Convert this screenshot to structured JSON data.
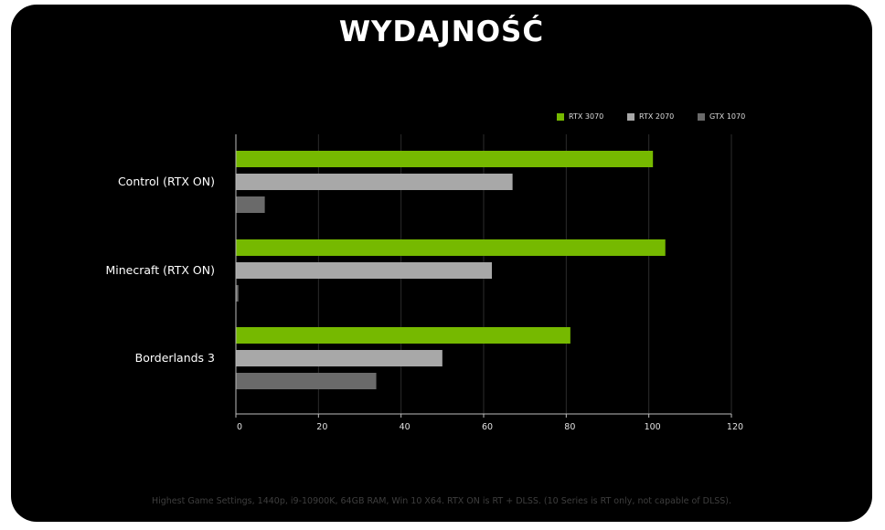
{
  "page": {
    "title": "WYDAJNOŚĆ",
    "footnote": "Highest Game Settings, 1440p, i9-10900K, 64GB RAM, Win 10 X64. RTX ON is RT + DLSS. (10 Series is RT only, not capable of DLSS)."
  },
  "colors": {
    "background": "#000000",
    "rtx3070": "#76b900",
    "rtx2070": "#a8a8a8",
    "gtx1070": "#6a6a6a",
    "text": "#ffffff"
  },
  "chart_data": {
    "type": "bar",
    "orientation": "horizontal",
    "title": "WYDAJNOŚĆ",
    "categories": [
      "Control (RTX ON)",
      "Minecraft (RTX ON)",
      "Borderlands 3"
    ],
    "series": [
      {
        "name": "RTX 3070",
        "color": "#76b900",
        "values": [
          101,
          104,
          81
        ]
      },
      {
        "name": "RTX 2070",
        "color": "#a8a8a8",
        "values": [
          67,
          62,
          50
        ]
      },
      {
        "name": "GTX 1070",
        "color": "#6a6a6a",
        "values": [
          7,
          0.6,
          34
        ]
      }
    ],
    "xlim": [
      0,
      120
    ],
    "xticks": [
      0,
      20,
      40,
      60,
      80,
      100,
      120
    ],
    "xlabel": "",
    "ylabel": "",
    "grid": true,
    "legend_position": "top-right"
  }
}
